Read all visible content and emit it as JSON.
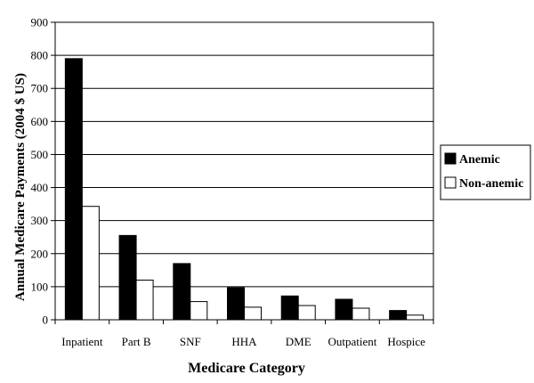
{
  "chart_data": {
    "type": "bar",
    "title": "",
    "xlabel": "Medicare Category",
    "ylabel": "Annual Medicare Payments (2004 $ US)",
    "categories": [
      "Inpatient",
      "Part B",
      "SNF",
      "HHA",
      "DME",
      "Outpatient",
      "Hospice"
    ],
    "series": [
      {
        "name": "Anemic",
        "values": [
          790,
          255,
          170,
          97,
          72,
          62,
          28
        ],
        "color": "#000000"
      },
      {
        "name": "Non-anemic",
        "values": [
          343,
          120,
          55,
          38,
          43,
          35,
          14
        ],
        "color": "#ffffff"
      }
    ],
    "ylim": [
      0,
      900
    ],
    "yticks": [
      0,
      100,
      200,
      300,
      400,
      500,
      600,
      700,
      800,
      900
    ],
    "grid": true,
    "legend_position": "right"
  }
}
